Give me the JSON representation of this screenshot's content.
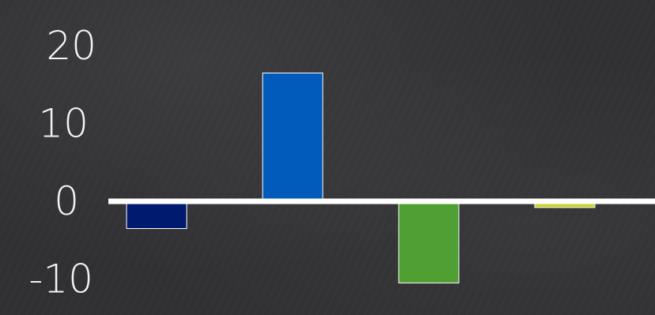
{
  "chart_data": {
    "type": "bar",
    "categories": [
      "",
      "",
      "",
      ""
    ],
    "series": [
      {
        "values": [
          -3.5,
          16.5,
          -10.5,
          -0.8
        ]
      }
    ],
    "bar_colors": [
      "#001a70",
      "#005bbb",
      "#4f9f32",
      "#c9d225"
    ],
    "ylim": [
      -12,
      22
    ],
    "yticks": [
      "20",
      "10",
      "0",
      "-10"
    ],
    "title": "",
    "xlabel": "",
    "ylabel": "",
    "grid": false,
    "legend": "none",
    "background_color": "#303033",
    "zero_line_color": "#ffffff"
  }
}
